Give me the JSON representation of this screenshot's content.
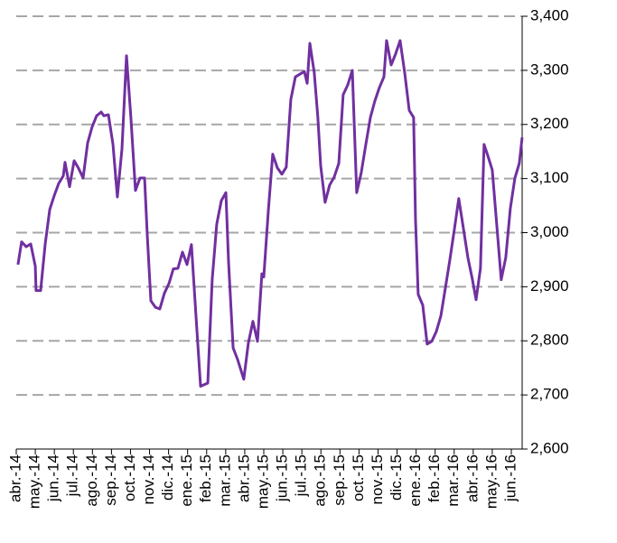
{
  "chart_data": {
    "type": "line",
    "x": [
      0.09,
      0.28,
      0.52,
      0.76,
      1.0,
      1.04,
      1.28,
      1.52,
      1.76,
      1.99,
      2.23,
      2.47,
      2.56,
      2.8,
      3.04,
      3.27,
      3.51,
      3.75,
      3.98,
      4.22,
      4.46,
      4.6,
      4.84,
      5.08,
      5.31,
      5.55,
      5.79,
      6.02,
      6.26,
      6.5,
      6.74,
      6.88,
      7.07,
      7.31,
      7.54,
      7.78,
      8.02,
      8.25,
      8.49,
      8.73,
      8.97,
      9.2,
      9.44,
      9.68,
      10.06,
      10.29,
      10.53,
      10.77,
      11.01,
      11.15,
      11.39,
      11.62,
      11.95,
      12.19,
      12.43,
      12.67,
      12.9,
      13.0,
      13.24,
      13.47,
      13.71,
      13.95,
      14.18,
      14.42,
      14.66,
      14.9,
      15.13,
      15.28,
      15.42,
      15.65,
      15.84,
      15.99,
      16.22,
      16.46,
      16.7,
      16.94,
      17.17,
      17.41,
      17.65,
      17.88,
      18.12,
      18.36,
      18.6,
      18.83,
      19.07,
      19.31,
      19.45,
      19.69,
      19.92,
      20.16,
      20.4,
      20.64,
      20.87,
      20.97,
      21.11,
      21.35,
      21.58,
      21.82,
      22.06,
      22.3,
      22.53,
      22.77,
      23.01,
      23.24,
      23.48,
      23.72,
      23.96,
      24.15,
      24.38,
      24.57,
      24.76,
      25.0,
      25.24,
      25.47,
      25.71,
      25.95,
      26.19,
      26.42,
      26.57
    ],
    "values": [
      2941,
      2983,
      2974,
      2979,
      2938,
      2893,
      2893,
      2979,
      3043,
      3068,
      3091,
      3105,
      3130,
      3085,
      3133,
      3119,
      3101,
      3166,
      3195,
      3216,
      3223,
      3216,
      3218,
      3163,
      3066,
      3154,
      3327,
      3213,
      3078,
      3101,
      3101,
      2996,
      2874,
      2862,
      2859,
      2888,
      2906,
      2933,
      2934,
      2964,
      2941,
      2978,
      2846,
      2716,
      2722,
      2913,
      3016,
      3059,
      3074,
      2946,
      2787,
      2766,
      2729,
      2796,
      2836,
      2799,
      2924,
      2918,
      3041,
      3145,
      3120,
      3108,
      3121,
      3246,
      3288,
      3293,
      3298,
      3276,
      3350,
      3296,
      3213,
      3123,
      3056,
      3088,
      3103,
      3128,
      3255,
      3273,
      3300,
      3074,
      3111,
      3163,
      3213,
      3243,
      3268,
      3288,
      3355,
      3310,
      3330,
      3355,
      3296,
      3226,
      3213,
      3024,
      2886,
      2866,
      2794,
      2799,
      2817,
      2846,
      2896,
      2949,
      3006,
      3063,
      3009,
      2954,
      2913,
      2876,
      2934,
      3163,
      3143,
      3116,
      3013,
      2913,
      2954,
      3045,
      3101,
      3128,
      3176
    ],
    "color": "#7030a0",
    "xlim": [
      0,
      26.57
    ],
    "xticks": [
      {
        "value": 0,
        "label": "abr.-14"
      },
      {
        "value": 1,
        "label": "may.-14"
      },
      {
        "value": 2,
        "label": "jun.-14"
      },
      {
        "value": 3,
        "label": "jul.-14"
      },
      {
        "value": 4,
        "label": "ago.-14"
      },
      {
        "value": 5,
        "label": "sep.-14"
      },
      {
        "value": 6,
        "label": "oct.-14"
      },
      {
        "value": 7,
        "label": "nov.-14"
      },
      {
        "value": 8,
        "label": "dic.-14"
      },
      {
        "value": 9,
        "label": "ene.-15"
      },
      {
        "value": 10,
        "label": "feb.-15"
      },
      {
        "value": 11,
        "label": "mar.-15"
      },
      {
        "value": 12,
        "label": "abr.-15"
      },
      {
        "value": 13,
        "label": "may.-15"
      },
      {
        "value": 14,
        "label": "jun.-15"
      },
      {
        "value": 15,
        "label": "jul.-15"
      },
      {
        "value": 16,
        "label": "ago.-15"
      },
      {
        "value": 17,
        "label": "sep.-15"
      },
      {
        "value": 18,
        "label": "oct.-15"
      },
      {
        "value": 19,
        "label": "nov.-15"
      },
      {
        "value": 20,
        "label": "dic.-15"
      },
      {
        "value": 21,
        "label": "ene.-16"
      },
      {
        "value": 22,
        "label": "feb.-16"
      },
      {
        "value": 23,
        "label": "mar.-16"
      },
      {
        "value": 24,
        "label": "abr.-16"
      },
      {
        "value": 25,
        "label": "may.-16"
      },
      {
        "value": 26,
        "label": "jun.-16"
      }
    ],
    "ylim": [
      2600,
      3400
    ],
    "yticks": [
      {
        "value": 2600,
        "label": "2,600"
      },
      {
        "value": 2700,
        "label": "2,700"
      },
      {
        "value": 2800,
        "label": "2,800"
      },
      {
        "value": 2900,
        "label": "2,900"
      },
      {
        "value": 3000,
        "label": "3,000"
      },
      {
        "value": 3100,
        "label": "3,100"
      },
      {
        "value": 3200,
        "label": "3,200"
      },
      {
        "value": 3300,
        "label": "3,300"
      },
      {
        "value": 3400,
        "label": "3,400"
      }
    ],
    "y_axis_side": "right",
    "grid": true
  }
}
